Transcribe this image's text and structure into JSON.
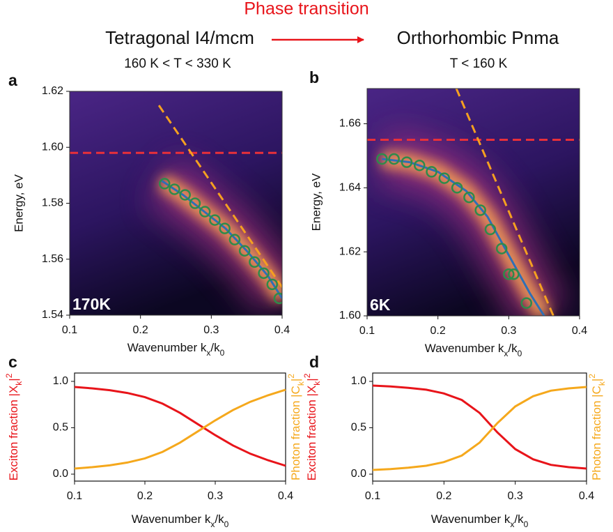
{
  "header": {
    "title": "Phase transition",
    "from_phase": "Tetragonal I4/mcm",
    "to_phase": "Orthorhombic Pnma",
    "from_range": "160 K < T < 330 K",
    "to_range": "T < 160 K"
  },
  "chart_data": [
    {
      "type": "dispersion",
      "panel": "a",
      "temperature": "170K",
      "xlabel": [
        "Wavenumber k",
        "x",
        "/k",
        "0"
      ],
      "ylabel": "Energy, eV",
      "xlim": [
        0.1,
        0.4
      ],
      "xticks": [
        0.1,
        0.2,
        0.3,
        0.4
      ],
      "ylim": [
        1.54,
        1.62
      ],
      "yticks": [
        1.54,
        1.56,
        1.58,
        {
          "value": 1.6,
          "label": "1.60"
        },
        1.62
      ],
      "points": {
        "color": "#2e8b4a",
        "x": [
          0.234,
          0.248,
          0.263,
          0.277,
          0.291,
          0.305,
          0.319,
          0.333,
          0.347,
          0.361,
          0.374,
          0.386,
          0.396
        ],
        "y": [
          1.587,
          1.585,
          1.583,
          1.58,
          1.577,
          1.574,
          1.571,
          1.567,
          1.563,
          1.559,
          1.555,
          1.551,
          1.546
        ]
      },
      "fit": {
        "color": "#2f6fb6",
        "x": [
          0.23,
          0.26,
          0.29,
          0.32,
          0.35,
          0.38,
          0.4
        ],
        "y": [
          1.588,
          1.583,
          1.577,
          1.571,
          1.563,
          1.554,
          1.546
        ]
      },
      "photon_line": {
        "color": "#f5a020",
        "x": [
          0.226,
          0.4
        ],
        "y": [
          1.615,
          1.55
        ]
      },
      "exciton_line": {
        "color": "#e8303a",
        "y": 1.598
      }
    },
    {
      "type": "dispersion",
      "panel": "b",
      "temperature": "6K",
      "xlabel": [
        "Wavenumber k",
        "x",
        "/k",
        "0"
      ],
      "ylabel": "Energy, eV",
      "xlim": [
        0.1,
        0.4
      ],
      "xticks": [
        0.1,
        0.2,
        0.3,
        0.4
      ],
      "ylim": [
        1.6,
        1.671
      ],
      "yticks": [
        {
          "value": 1.6,
          "label": "1.60"
        },
        1.62,
        1.64,
        1.66
      ],
      "points": {
        "color": "#2e8b4a",
        "x": [
          0.121,
          0.138,
          0.156,
          0.174,
          0.191,
          0.209,
          0.227,
          0.244,
          0.26,
          0.274,
          0.29,
          0.3,
          0.307,
          0.325
        ],
        "y": [
          1.649,
          1.649,
          1.648,
          1.647,
          1.645,
          1.643,
          1.64,
          1.637,
          1.633,
          1.627,
          1.621,
          1.613,
          1.613,
          1.604
        ]
      },
      "fit": {
        "color": "#2f6fb6",
        "x": [
          0.121,
          0.16,
          0.2,
          0.24,
          0.27,
          0.3,
          0.33,
          0.35
        ],
        "y": [
          1.649,
          1.648,
          1.645,
          1.639,
          1.631,
          1.619,
          1.607,
          1.6
        ]
      },
      "photon_line": {
        "color": "#f5a020",
        "x": [
          0.226,
          0.363
        ],
        "y": [
          1.671,
          1.6
        ]
      },
      "exciton_line": {
        "color": "#e8303a",
        "y": 1.655
      }
    },
    {
      "type": "line",
      "panel": "c",
      "xlabel": [
        "Wavenumber k",
        "x",
        "/k",
        "0"
      ],
      "ylabel": [
        "Exciton fraction |X",
        "k",
        "|",
        "2"
      ],
      "ylabel_color": "#e8141a",
      "y2label": [
        "Photon fraction |C",
        "k",
        "|",
        "2"
      ],
      "y2label_color": "#f5a81c",
      "xlim": [
        0.1,
        0.4
      ],
      "xticks": [
        0.1,
        0.2,
        0.3,
        0.4
      ],
      "ylim": [
        -0.075,
        1.09
      ],
      "yticks": [
        {
          "value": 0,
          "label": "0.0"
        },
        0.5,
        {
          "value": 1,
          "label": "1.0"
        }
      ],
      "y2lim": [
        -0.075,
        1.09
      ],
      "x": [
        0.1,
        0.125,
        0.15,
        0.175,
        0.2,
        0.225,
        0.25,
        0.275,
        0.3,
        0.325,
        0.35,
        0.375,
        0.4
      ],
      "series": [
        {
          "color": "#e8141a",
          "values": [
            0.94,
            0.925,
            0.905,
            0.875,
            0.83,
            0.76,
            0.66,
            0.54,
            0.42,
            0.31,
            0.22,
            0.15,
            0.09
          ]
        },
        {
          "color": "#f5a81c",
          "axis": "y2",
          "values": [
            0.06,
            0.075,
            0.095,
            0.125,
            0.17,
            0.24,
            0.34,
            0.46,
            0.58,
            0.69,
            0.78,
            0.85,
            0.91
          ]
        }
      ]
    },
    {
      "type": "line",
      "panel": "d",
      "xlabel": [
        "Wavenumber k",
        "x",
        "/k",
        "0"
      ],
      "ylabel": [
        "Exciton fraction |X",
        "k",
        "|",
        "2"
      ],
      "ylabel_color": "#e8141a",
      "y2label": [
        "Photon fraction |C",
        "k",
        "|",
        "2"
      ],
      "y2label_color": "#f5a81c",
      "xlim": [
        0.1,
        0.4
      ],
      "xticks": [
        0.1,
        0.2,
        0.3,
        0.4
      ],
      "ylim": [
        -0.075,
        1.09
      ],
      "yticks": [
        {
          "value": 0,
          "label": "0.0"
        },
        0.5,
        {
          "value": 1,
          "label": "1.0"
        }
      ],
      "y2lim": [
        -0.075,
        1.09
      ],
      "x": [
        0.1,
        0.125,
        0.15,
        0.175,
        0.2,
        0.225,
        0.25,
        0.275,
        0.3,
        0.325,
        0.35,
        0.375,
        0.4
      ],
      "series": [
        {
          "color": "#e8141a",
          "values": [
            0.955,
            0.945,
            0.93,
            0.91,
            0.87,
            0.8,
            0.66,
            0.45,
            0.27,
            0.16,
            0.1,
            0.075,
            0.06
          ]
        },
        {
          "color": "#f5a81c",
          "axis": "y2",
          "values": [
            0.045,
            0.055,
            0.07,
            0.09,
            0.13,
            0.2,
            0.34,
            0.55,
            0.73,
            0.84,
            0.9,
            0.925,
            0.94
          ]
        }
      ]
    }
  ]
}
